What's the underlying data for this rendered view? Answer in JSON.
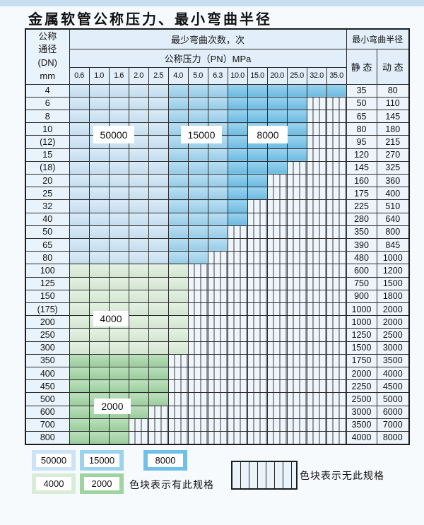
{
  "page": {
    "title": "金属软管公称压力、最小弯曲半径"
  },
  "table": {
    "corner_lines": [
      "公称",
      "通径",
      "(DN)",
      "mm"
    ],
    "bend_cycles_header": "最少弯曲次数，次",
    "pressure_header": "公称压力（PN）MPa",
    "radius_header": "最小弯曲半径",
    "static_header": "静 态",
    "dynamic_header": "动 态"
  },
  "colors": {
    "c50000": "#cbe3f5",
    "c15000": "#9cd2ee",
    "c8000": "#70c0e8",
    "c4000": "#d9ecd7",
    "c2000": "#9fd3a1",
    "top_strip": "#c7def0"
  },
  "region_labels": [
    {
      "text": "50000"
    },
    {
      "text": "15000"
    },
    {
      "text": "8000"
    },
    {
      "text": "4000"
    },
    {
      "text": "2000"
    }
  ],
  "legend": {
    "items": [
      {
        "label": "50000",
        "color": "#cbe3f5"
      },
      {
        "label": "15000",
        "color": "#9cd2ee"
      },
      {
        "label": "8000",
        "color": "#70c0e8"
      },
      {
        "label": "4000",
        "color": "#d9ecd7"
      },
      {
        "label": "2000",
        "color": "#9fd3a1"
      }
    ],
    "has_spec_note": "色块表示有此规格",
    "no_spec_note": "色块表示无此规格"
  },
  "chart_data": {
    "type": "table",
    "title": "金属软管公称压力、最小弯曲半径",
    "pressure_columns_pn_mpa": [
      "0.6",
      "1.0",
      "1.6",
      "2.0",
      "2.5",
      "4.0",
      "5.0",
      "6.3",
      "10.0",
      "15.0",
      "20.0",
      "25.0",
      "32.0",
      "35.0"
    ],
    "cycle_zones_blue_rows": {
      "50000": [
        "0.6",
        "1.0",
        "1.6",
        "2.0",
        "2.5"
      ],
      "15000": [
        "4.0",
        "5.0",
        "6.3"
      ],
      "8000": [
        "10.0",
        "15.0",
        "20.0",
        "25.0",
        "32.0",
        "35.0"
      ]
    },
    "legend_meaning": {
      "colored": "色块表示有此规格",
      "hatched": "色块表示无此规格"
    },
    "rows": [
      {
        "dn": "4",
        "group": "blue",
        "colored_cols": 14,
        "available_pn_max": "35.0",
        "static": "35",
        "dynamic": "80"
      },
      {
        "dn": "6",
        "group": "blue",
        "colored_cols": 12,
        "available_pn_max": "25.0",
        "static": "50",
        "dynamic": "110"
      },
      {
        "dn": "8",
        "group": "blue",
        "colored_cols": 12,
        "available_pn_max": "25.0",
        "static": "65",
        "dynamic": "145"
      },
      {
        "dn": "10",
        "group": "blue",
        "colored_cols": 12,
        "available_pn_max": "25.0",
        "static": "80",
        "dynamic": "180"
      },
      {
        "dn": "(12)",
        "group": "blue",
        "colored_cols": 12,
        "available_pn_max": "25.0",
        "static": "95",
        "dynamic": "215"
      },
      {
        "dn": "15",
        "group": "blue",
        "colored_cols": 12,
        "available_pn_max": "25.0",
        "static": "120",
        "dynamic": "270"
      },
      {
        "dn": "(18)",
        "group": "blue",
        "colored_cols": 11,
        "available_pn_max": "20.0",
        "static": "145",
        "dynamic": "325"
      },
      {
        "dn": "20",
        "group": "blue",
        "colored_cols": 10,
        "available_pn_max": "15.0",
        "static": "160",
        "dynamic": "360"
      },
      {
        "dn": "25",
        "group": "blue",
        "colored_cols": 10,
        "available_pn_max": "15.0",
        "static": "175",
        "dynamic": "400"
      },
      {
        "dn": "32",
        "group": "blue",
        "colored_cols": 9,
        "available_pn_max": "10.0",
        "static": "225",
        "dynamic": "510"
      },
      {
        "dn": "40",
        "group": "blue",
        "colored_cols": 9,
        "available_pn_max": "10.0",
        "static": "280",
        "dynamic": "640"
      },
      {
        "dn": "50",
        "group": "blue",
        "colored_cols": 8,
        "available_pn_max": "6.3",
        "static": "350",
        "dynamic": "800"
      },
      {
        "dn": "65",
        "group": "blue",
        "colored_cols": 8,
        "available_pn_max": "6.3",
        "static": "390",
        "dynamic": "845"
      },
      {
        "dn": "80",
        "group": "blue",
        "colored_cols": 7,
        "available_pn_max": "5.0",
        "static": "480",
        "dynamic": "1000"
      },
      {
        "dn": "100",
        "group": "4000",
        "colored_cols": 6,
        "available_pn_max": "4.0",
        "static": "600",
        "dynamic": "1200"
      },
      {
        "dn": "125",
        "group": "4000",
        "colored_cols": 6,
        "available_pn_max": "4.0",
        "static": "750",
        "dynamic": "1500"
      },
      {
        "dn": "150",
        "group": "4000",
        "colored_cols": 6,
        "available_pn_max": "4.0",
        "static": "900",
        "dynamic": "1800"
      },
      {
        "dn": "(175)",
        "group": "4000",
        "colored_cols": 6,
        "available_pn_max": "4.0",
        "static": "1000",
        "dynamic": "2000"
      },
      {
        "dn": "200",
        "group": "4000",
        "colored_cols": 6,
        "available_pn_max": "4.0",
        "static": "1000",
        "dynamic": "2000"
      },
      {
        "dn": "250",
        "group": "4000",
        "colored_cols": 6,
        "available_pn_max": "4.0",
        "static": "1250",
        "dynamic": "2500"
      },
      {
        "dn": "300",
        "group": "4000",
        "colored_cols": 6,
        "available_pn_max": "4.0",
        "static": "1500",
        "dynamic": "3000"
      },
      {
        "dn": "350",
        "group": "2000",
        "colored_cols": 5,
        "available_pn_max": "2.5",
        "static": "1750",
        "dynamic": "3500"
      },
      {
        "dn": "400",
        "group": "2000",
        "colored_cols": 5,
        "available_pn_max": "2.5",
        "static": "2000",
        "dynamic": "4000"
      },
      {
        "dn": "450",
        "group": "2000",
        "colored_cols": 5,
        "available_pn_max": "2.5",
        "static": "2250",
        "dynamic": "4500"
      },
      {
        "dn": "500",
        "group": "2000",
        "colored_cols": 5,
        "available_pn_max": "2.5",
        "static": "2500",
        "dynamic": "5000"
      },
      {
        "dn": "600",
        "group": "2000",
        "colored_cols": 4,
        "available_pn_max": "2.0",
        "static": "3000",
        "dynamic": "6000"
      },
      {
        "dn": "700",
        "group": "2000",
        "colored_cols": 3,
        "available_pn_max": "1.6",
        "static": "3500",
        "dynamic": "7000"
      },
      {
        "dn": "800",
        "group": "2000",
        "colored_cols": 3,
        "available_pn_max": "1.6",
        "static": "4000",
        "dynamic": "8000"
      }
    ]
  }
}
